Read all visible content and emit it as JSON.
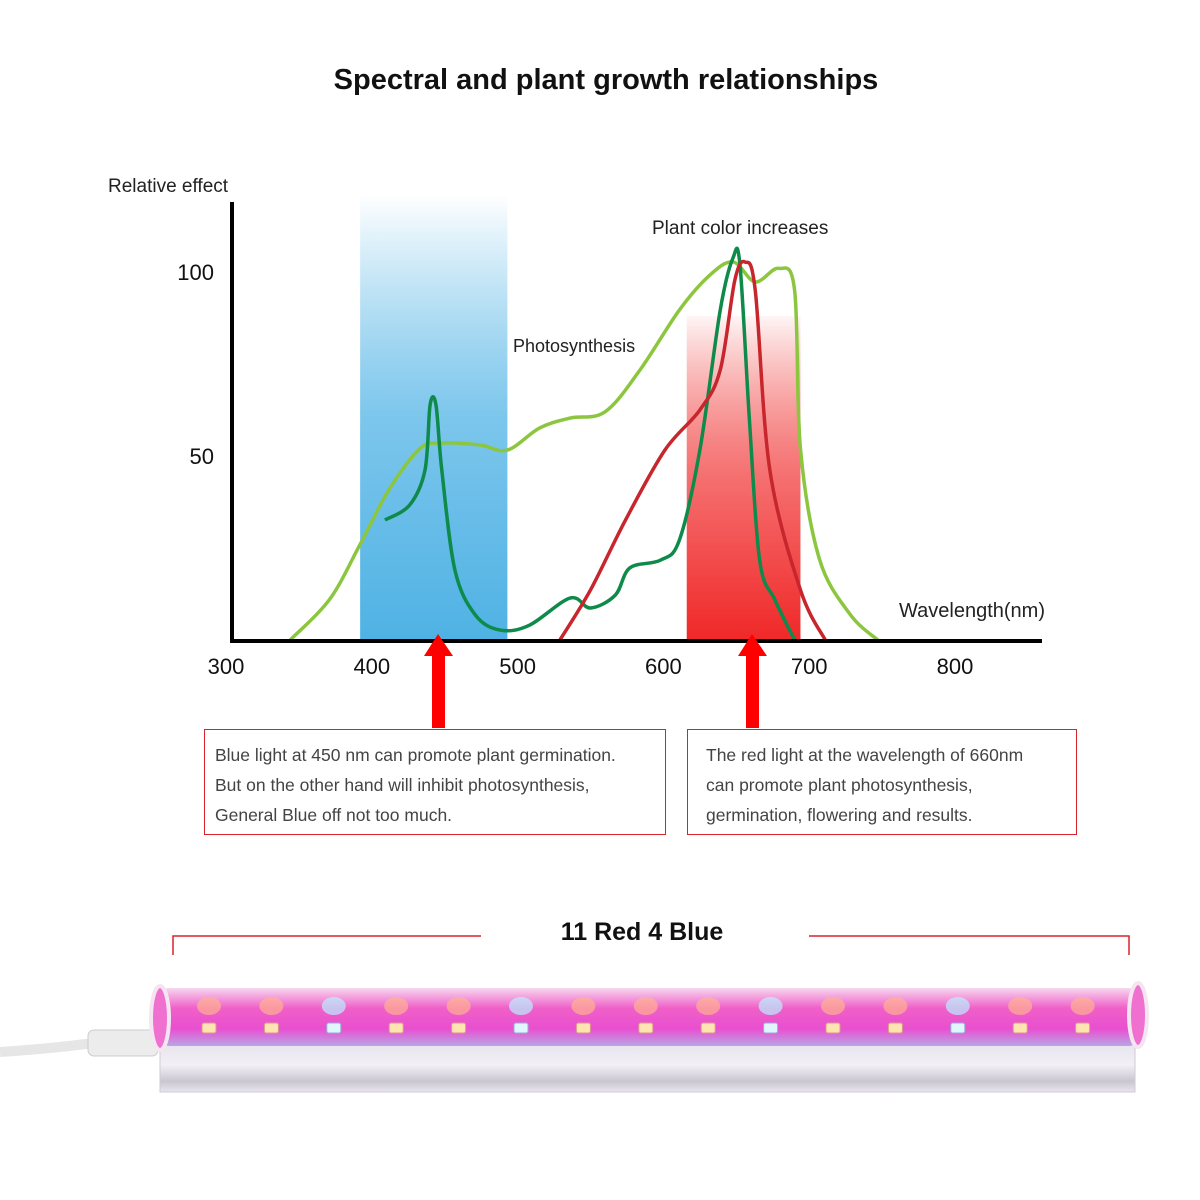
{
  "title": "Spectral and plant growth relationships",
  "chart_data": {
    "type": "line",
    "title": "Spectral and plant growth relationships",
    "ylabel": "Relative effect",
    "xlabel": "Wavelength(nm)",
    "xlim": [
      300,
      855
    ],
    "ylim": [
      0,
      120
    ],
    "x_ticks": [
      "300",
      "400",
      "500",
      "600",
      "700",
      "800"
    ],
    "y_ticks": [
      "50",
      "100"
    ],
    "grid": false,
    "bands": [
      {
        "color": "blue",
        "from": 392,
        "to": 493
      },
      {
        "color": "red",
        "from": 616,
        "to": 694
      }
    ],
    "annotations": [
      "Photosynthesis",
      "Plant color increases"
    ],
    "series": [
      {
        "color": "#8cc63f",
        "points": [
          [
            344,
            0
          ],
          [
            371,
            11
          ],
          [
            392,
            26
          ],
          [
            412,
            41
          ],
          [
            433,
            52
          ],
          [
            447,
            53.5
          ],
          [
            474,
            53
          ],
          [
            493,
            51.6
          ],
          [
            515,
            57.6
          ],
          [
            536,
            60.3
          ],
          [
            560,
            62
          ],
          [
            584,
            73.4
          ],
          [
            611,
            89.7
          ],
          [
            632,
            99.2
          ],
          [
            648,
            102.7
          ],
          [
            663,
            97.3
          ],
          [
            679,
            101
          ],
          [
            690,
            95
          ],
          [
            694,
            52
          ],
          [
            707,
            22
          ],
          [
            728,
            7
          ],
          [
            747,
            0
          ]
        ]
      },
      {
        "color": "#0e8a4a",
        "points": [
          [
            409,
            32.6
          ],
          [
            426,
            36.7
          ],
          [
            436.5,
            46.2
          ],
          [
            440,
            63.9
          ],
          [
            444,
            63.9
          ],
          [
            448,
            46.2
          ],
          [
            457,
            19
          ],
          [
            471,
            6.8
          ],
          [
            488,
            2.7
          ],
          [
            508,
            4
          ],
          [
            536,
            11.4
          ],
          [
            550,
            8.7
          ],
          [
            567,
            12.2
          ],
          [
            577,
            19.6
          ],
          [
            598,
            21.7
          ],
          [
            611,
            27.2
          ],
          [
            625,
            51.6
          ],
          [
            639,
            89.7
          ],
          [
            647.7,
            103.8
          ],
          [
            652.5,
            102
          ],
          [
            659,
            59.8
          ],
          [
            666,
            21.7
          ],
          [
            676.5,
            10.9
          ],
          [
            690,
            0
          ]
        ]
      },
      {
        "color": "#c8262d",
        "points": [
          [
            529,
            0
          ],
          [
            550,
            13.6
          ],
          [
            574,
            32.6
          ],
          [
            601,
            51.6
          ],
          [
            625,
            62.5
          ],
          [
            639,
            73.4
          ],
          [
            649,
            97.8
          ],
          [
            656,
            102.7
          ],
          [
            663,
            95
          ],
          [
            673,
            46.2
          ],
          [
            694,
            13.6
          ],
          [
            711,
            0
          ]
        ]
      }
    ]
  },
  "notes": [
    {
      "lines": [
        "Blue light at 450 nm can promote plant germination.",
        "But on the other hand will inhibit photosynthesis,",
        "General Blue off not too much."
      ]
    },
    {
      "lines": [
        "The red light at the wavelength of 660nm",
        "can promote plant photosynthesis,",
        "germination, flowering and results."
      ]
    }
  ],
  "lamp": {
    "title": "11 Red 4 Blue",
    "led_pattern": [
      "red",
      "red",
      "blue",
      "red",
      "red",
      "blue",
      "red",
      "red",
      "red",
      "blue",
      "red",
      "red",
      "blue",
      "red",
      "red"
    ]
  }
}
